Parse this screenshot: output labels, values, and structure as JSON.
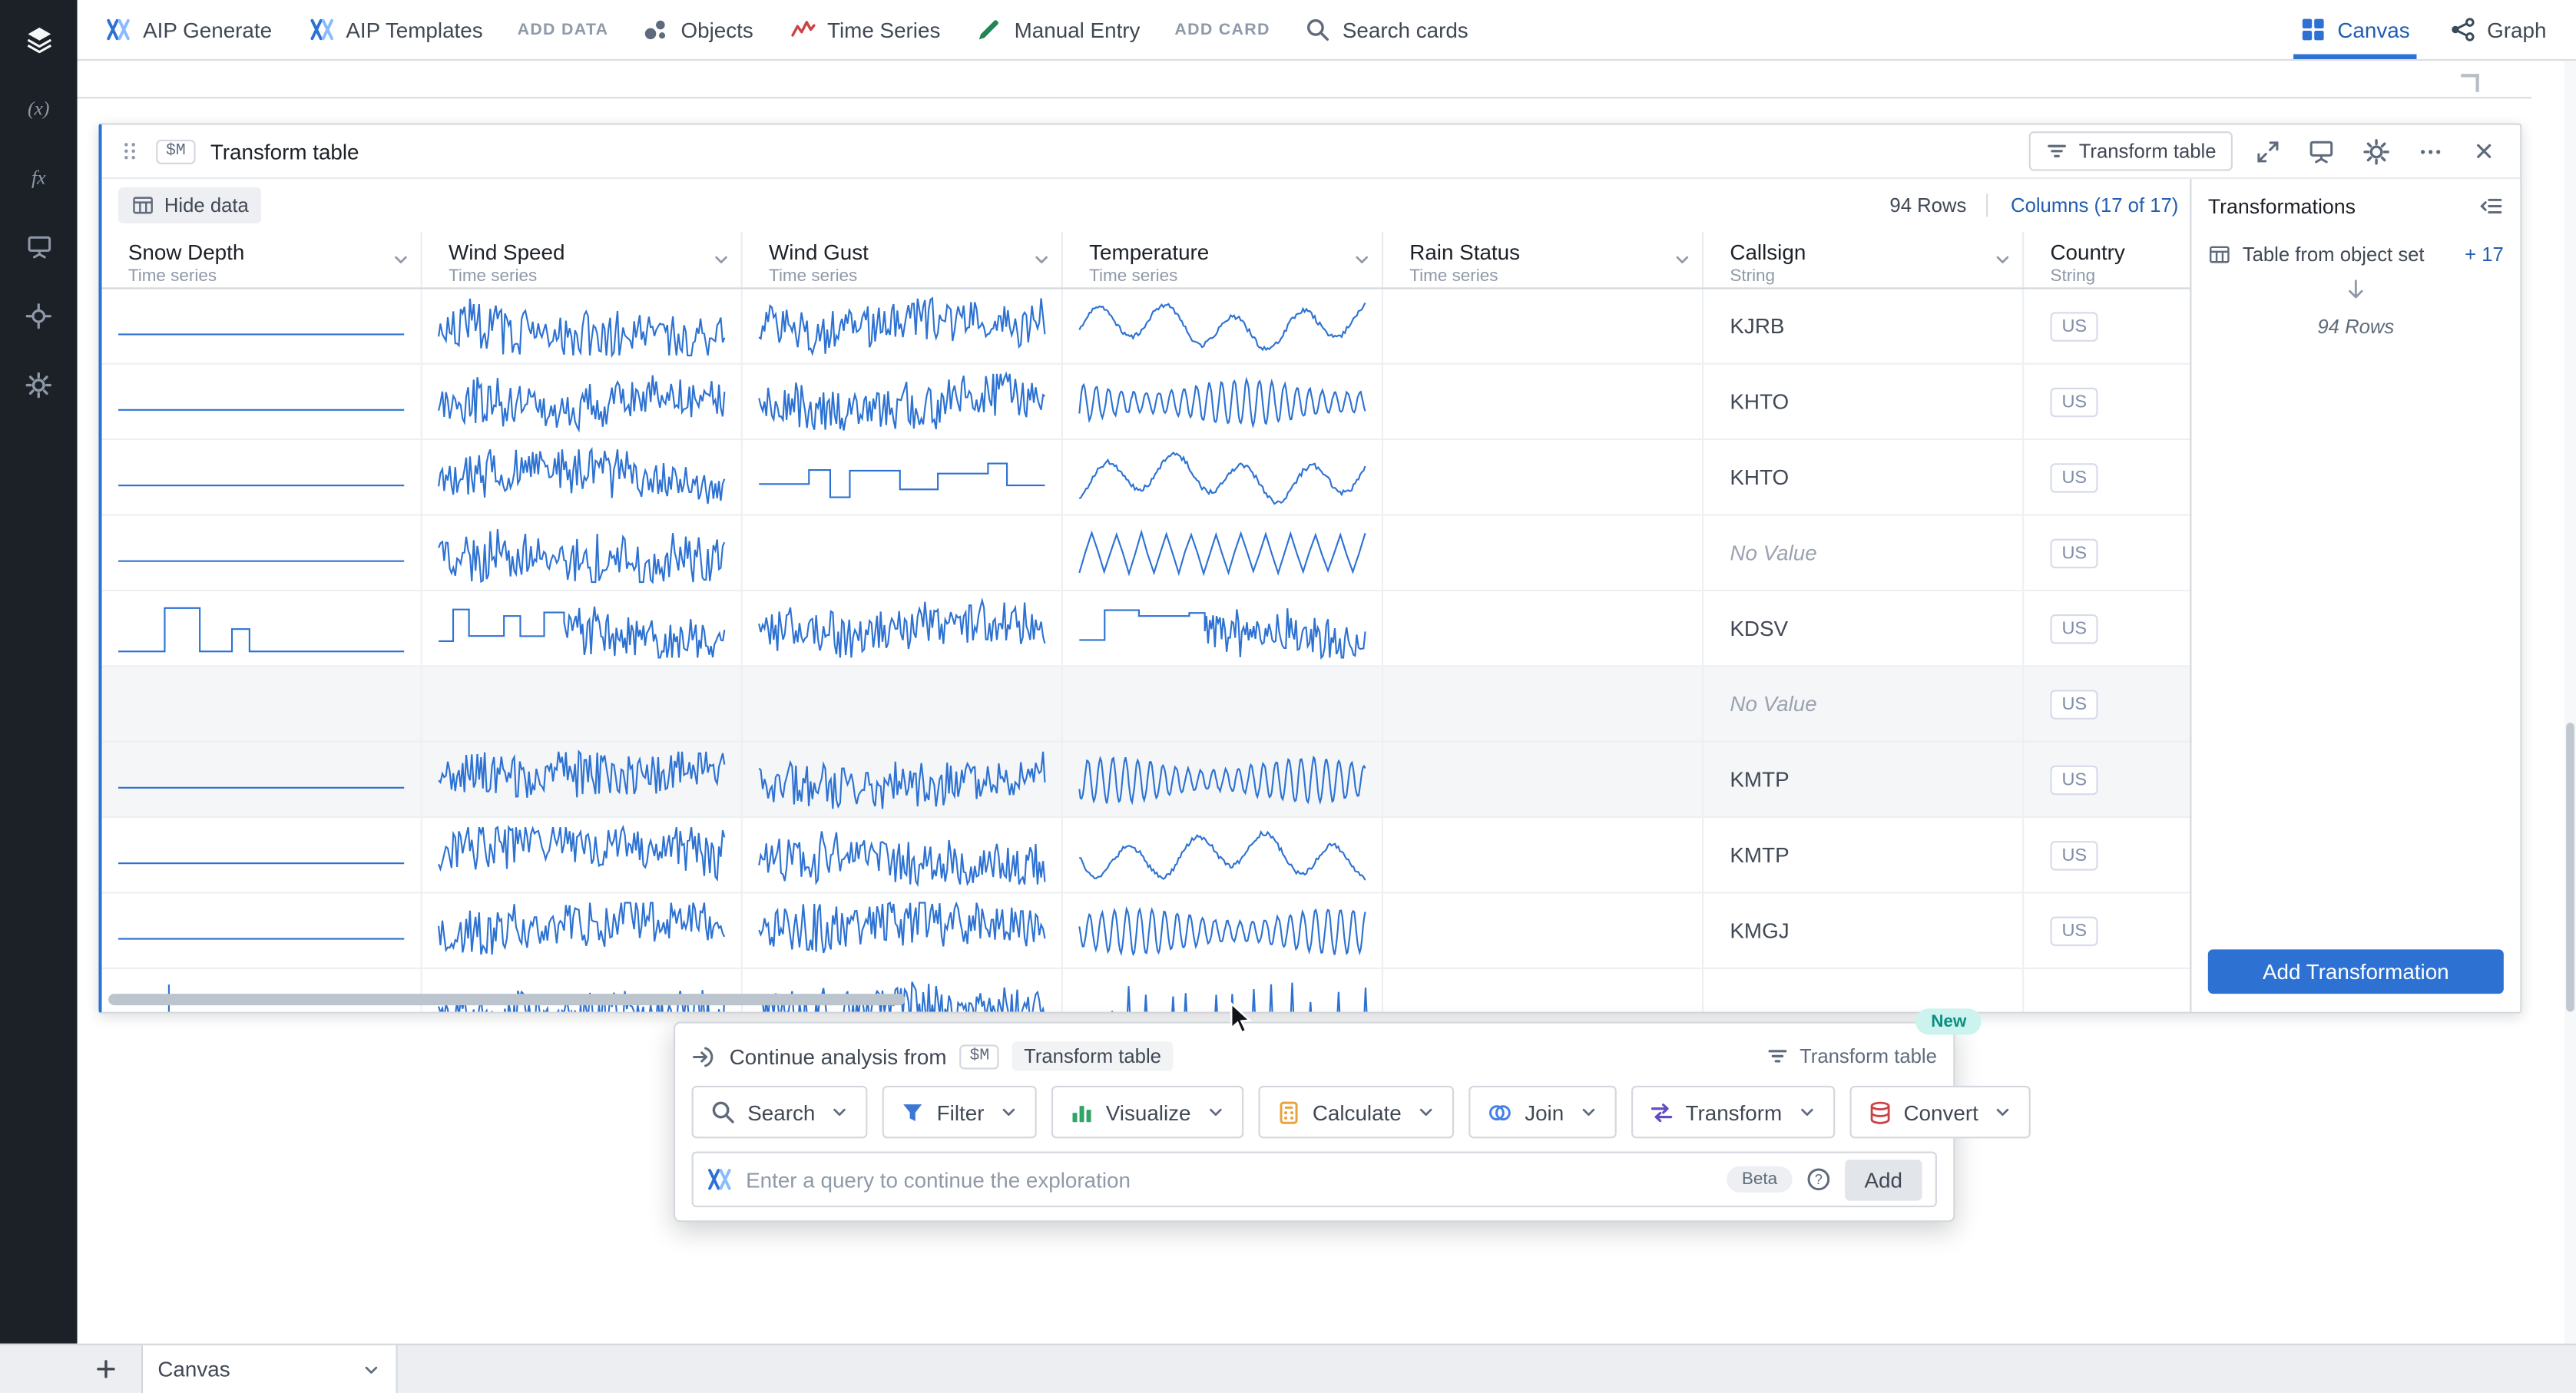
{
  "colors": {
    "accent": "#2d72d2",
    "accent_text": "#215db0",
    "spark": "#2d72d2",
    "icon_gray": "#5f6b7c",
    "icon_light": "#8f99a8",
    "objects": "#2d72d2",
    "timeseries": "#cd4246",
    "manual_entry": "#238551",
    "new_badge_bg": "#cdf3ee",
    "new_badge_text": "#0c8f83",
    "sidebar_bg": "#1c2127"
  },
  "topbar": {
    "aip_generate": "AIP Generate",
    "aip_templates": "AIP Templates",
    "add_data_label": "ADD DATA",
    "tools": [
      {
        "label": "Objects",
        "icon": "objects"
      },
      {
        "label": "Time Series",
        "icon": "timeseries"
      },
      {
        "label": "Manual Entry",
        "icon": "manual"
      }
    ],
    "add_card_label": "ADD CARD",
    "search_label": "Search cards",
    "tabs": [
      {
        "label": "Canvas",
        "active": true
      },
      {
        "label": "Graph",
        "active": false
      }
    ]
  },
  "card": {
    "badge": "$M",
    "title": "Transform table",
    "header_button": "Transform table",
    "toolbar": {
      "hide_data": "Hide data",
      "rows_count": "94 Rows",
      "columns_label": "Columns (17 of 17)"
    },
    "table": {
      "columns": [
        {
          "name": "Snow Depth",
          "type": "Time series"
        },
        {
          "name": "Wind Speed",
          "type": "Time series"
        },
        {
          "name": "Wind Gust",
          "type": "Time series"
        },
        {
          "name": "Temperature",
          "type": "Time series"
        },
        {
          "name": "Rain Status",
          "type": "Time series"
        },
        {
          "name": "Callsign",
          "type": "String"
        },
        {
          "name": "Country",
          "type": "String"
        }
      ],
      "no_value_text": "No Value",
      "rows": [
        {
          "sparks": [
            "flat",
            "noise",
            "noise",
            "wave",
            "none"
          ],
          "callsign": "KJRB",
          "no_value": false,
          "country": "US",
          "shaded": false
        },
        {
          "sparks": [
            "flat",
            "noise",
            "noise",
            "sine",
            "none"
          ],
          "callsign": "KHTO",
          "no_value": false,
          "country": "US",
          "shaded": false
        },
        {
          "sparks": [
            "flat",
            "noise",
            "steps",
            "wave",
            "none"
          ],
          "callsign": "KHTO",
          "no_value": false,
          "country": "US",
          "shaded": false
        },
        {
          "sparks": [
            "flat",
            "noise",
            "none",
            "zigzag",
            "none"
          ],
          "callsign": "No Value",
          "no_value": true,
          "country": "US",
          "shaded": false
        },
        {
          "sparks": [
            "pulse",
            "stepnoise",
            "noise",
            "stepnoise",
            "none"
          ],
          "callsign": "KDSV",
          "no_value": false,
          "country": "US",
          "shaded": false
        },
        {
          "sparks": [
            "none",
            "none",
            "none",
            "none",
            "none"
          ],
          "callsign": "No Value",
          "no_value": true,
          "country": "US",
          "shaded": true
        },
        {
          "sparks": [
            "flat",
            "noise",
            "noise",
            "sine",
            "none"
          ],
          "callsign": "KMTP",
          "no_value": false,
          "country": "US",
          "shaded": true
        },
        {
          "sparks": [
            "flat",
            "noise",
            "noise",
            "wave",
            "none"
          ],
          "callsign": "KMTP",
          "no_value": false,
          "country": "US",
          "shaded": false
        },
        {
          "sparks": [
            "flat",
            "noise",
            "noise",
            "sine",
            "none"
          ],
          "callsign": "KMGJ",
          "no_value": false,
          "country": "US",
          "shaded": false
        },
        {
          "sparks": [
            "tick",
            "noise",
            "noise",
            "spiky",
            "none"
          ],
          "callsign": "",
          "no_value": false,
          "country": "",
          "shaded": false
        }
      ]
    }
  },
  "transformations": {
    "title": "Transformations",
    "step_label": "Table from object set",
    "step_count": "+ 17",
    "rows_label": "94 Rows",
    "add_button": "Add Transformation"
  },
  "continue_panel": {
    "new_badge": "New",
    "prefix": "Continue analysis from",
    "badge": "$M",
    "source": "Transform table",
    "right_label": "Transform table",
    "actions": [
      {
        "label": "Search",
        "icon": "search",
        "color": "#5f6b7c"
      },
      {
        "label": "Filter",
        "icon": "filter",
        "color": "#3d77d6"
      },
      {
        "label": "Visualize",
        "icon": "chart",
        "color": "#32a467"
      },
      {
        "label": "Calculate",
        "icon": "calculator",
        "color": "#e8a33d"
      },
      {
        "label": "Join",
        "icon": "join",
        "color": "#4580e6"
      },
      {
        "label": "Transform",
        "icon": "transform",
        "color": "#634dbf"
      },
      {
        "label": "Convert",
        "icon": "convert",
        "color": "#cd4246"
      }
    ],
    "placeholder": "Enter a query to continue the exploration",
    "beta_badge": "Beta",
    "add_button": "Add"
  },
  "bottombar": {
    "tab_label": "Canvas"
  }
}
